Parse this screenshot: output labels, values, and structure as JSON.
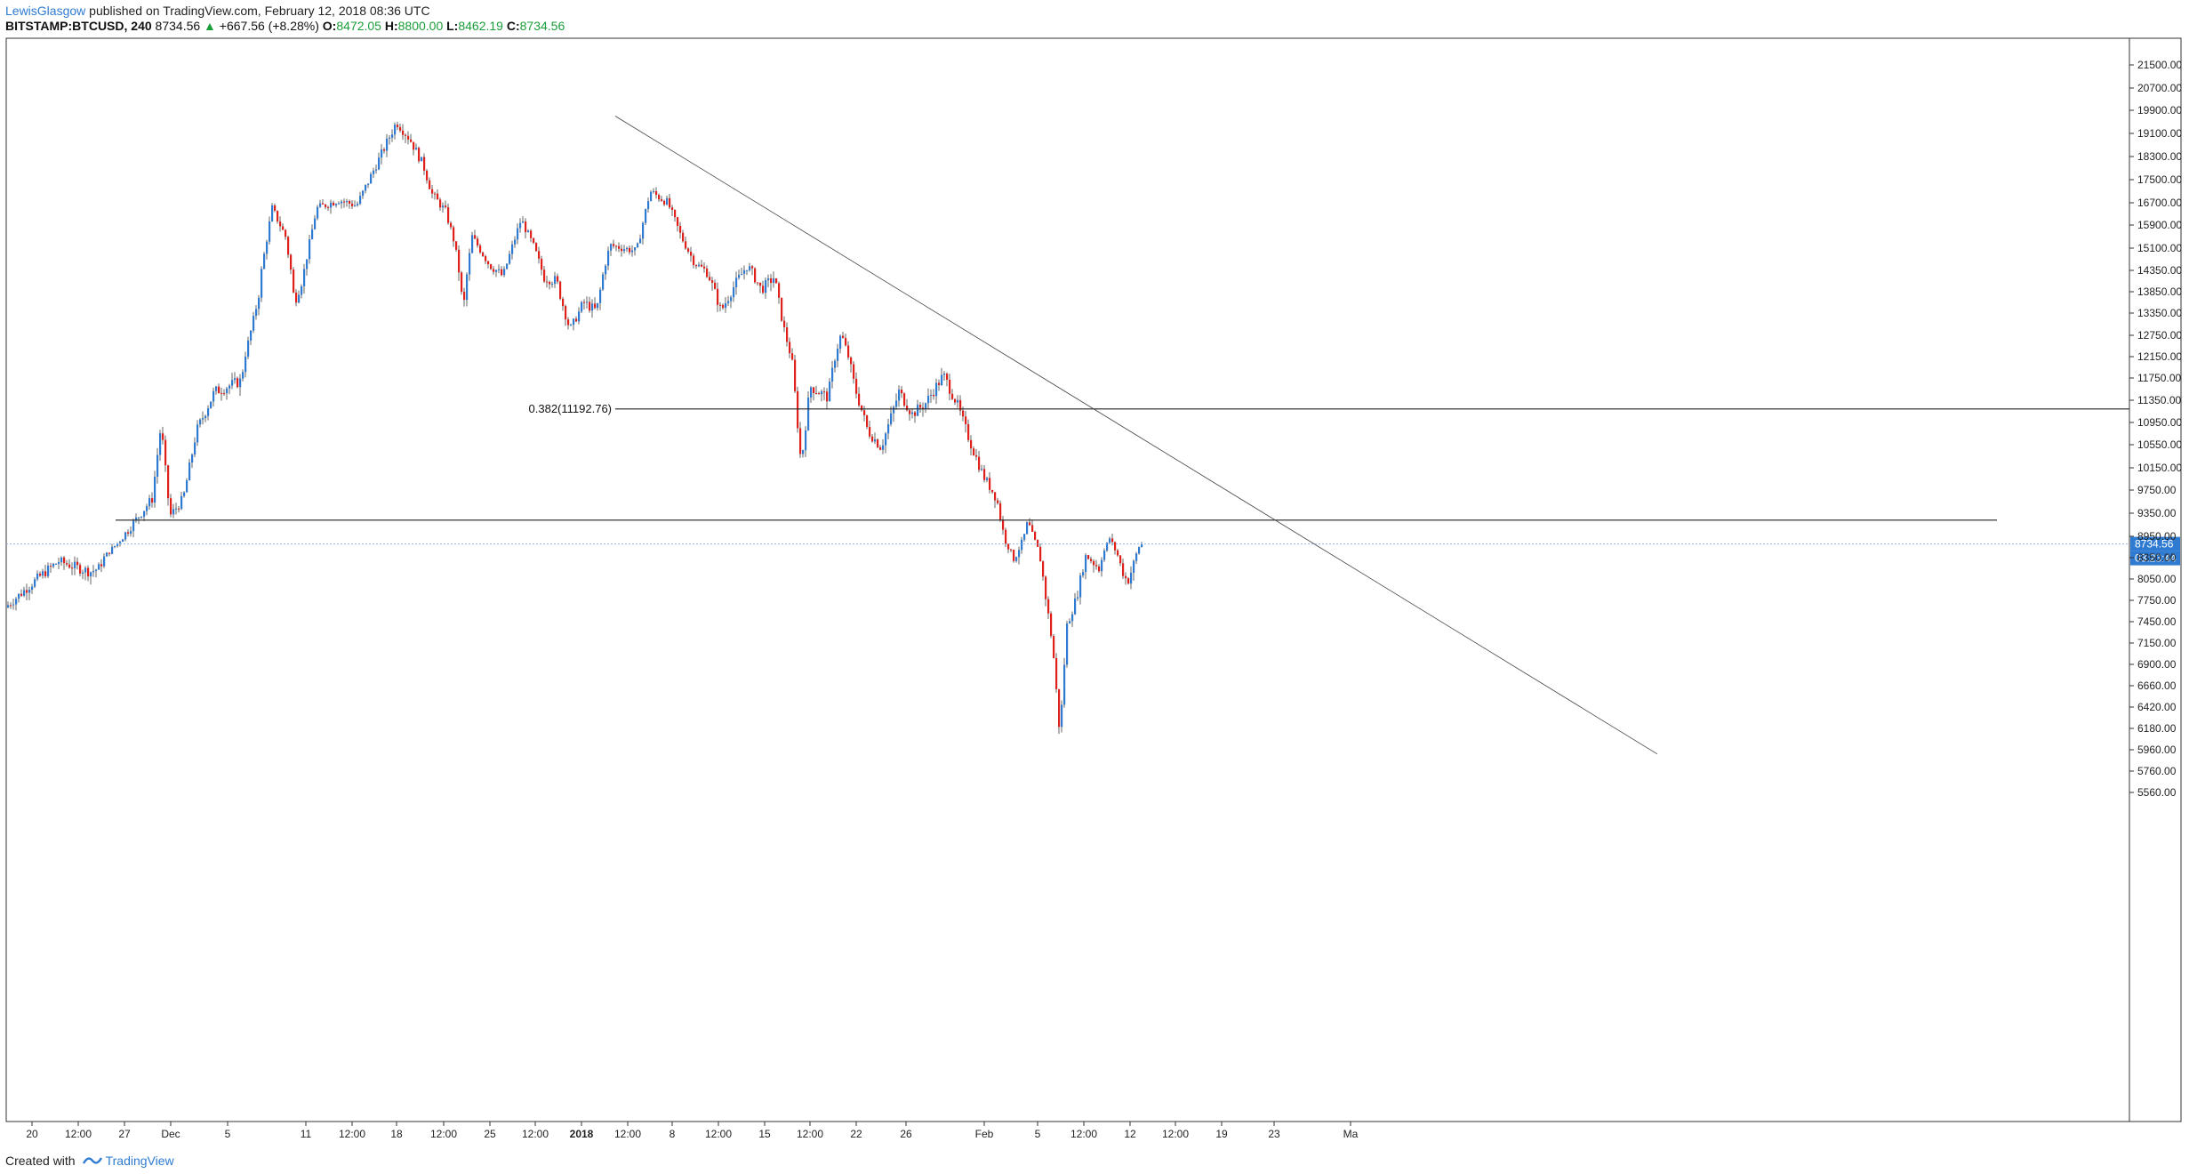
{
  "header": {
    "author": "LewisGlasgow",
    "published": " published on TradingView.com, February 12, 2018 08:36 UTC"
  },
  "symbol": {
    "name": "BITSTAMP:BTCUSD, 240",
    "last": "8734.56",
    "change": "+667.56 (+8.28%)",
    "o_label": "O:",
    "o": "8472.05",
    "h_label": "H:",
    "h": "8800.00",
    "l_label": "L:",
    "l": "8462.19",
    "c_label": "C:",
    "c": "8734.56",
    "up_color": "#1a9e3a"
  },
  "footer": {
    "created_with": "Created with",
    "brand": "TradingView",
    "brand_icon": "tradingview-logo-icon"
  },
  "chart_data": {
    "type": "candlestick",
    "y_ticks": [
      "21500.00",
      "20700.00",
      "19900.00",
      "19100.00",
      "18300.00",
      "17500.00",
      "16700.00",
      "15900.00",
      "15100.00",
      "14350.00",
      "13850.00",
      "13350.00",
      "12750.00",
      "12150.00",
      "11750.00",
      "11350.00",
      "10950.00",
      "10550.00",
      "10150.00",
      "9750.00",
      "9350.00",
      "8950.00",
      "8350.00",
      "8050.00",
      "7750.00",
      "7450.00",
      "7150.00",
      "6900.00",
      "6660.00",
      "6420.00",
      "6180.00",
      "5960.00",
      "5760.00",
      "5560.00"
    ],
    "x_ticks": [
      "20",
      "12:00",
      "27",
      "Dec",
      "5",
      "11",
      "12:00",
      "18",
      "12:00",
      "25",
      "12:00",
      "2018",
      "12:00",
      "8",
      "12:00",
      "15",
      "12:00",
      "22",
      "26",
      "Feb",
      "5",
      "12:00",
      "12",
      "12:00",
      "19",
      "23",
      "Ma"
    ],
    "up_color": "#2f7bd1",
    "down_color": "#e0201b",
    "last_price_label": "8734.56",
    "countdown_label": "03:23:44",
    "fib_label": "0.382(11192.76)",
    "horizontal_levels": [
      11192.76,
      9230
    ],
    "trendline": {
      "from": 19700,
      "to": 5920
    },
    "anchors": [
      {
        "t": 0,
        "p": 7650
      },
      {
        "t": 40,
        "p": 8100
      },
      {
        "t": 60,
        "p": 8300
      },
      {
        "t": 95,
        "p": 8150
      },
      {
        "t": 105,
        "p": 8200
      },
      {
        "t": 135,
        "p": 9000
      },
      {
        "t": 165,
        "p": 9600
      },
      {
        "t": 175,
        "p": 10900
      },
      {
        "t": 185,
        "p": 9300
      },
      {
        "t": 200,
        "p": 9600
      },
      {
        "t": 215,
        "p": 10800
      },
      {
        "t": 235,
        "p": 11500
      },
      {
        "t": 265,
        "p": 11700
      },
      {
        "t": 285,
        "p": 13800
      },
      {
        "t": 300,
        "p": 16500
      },
      {
        "t": 315,
        "p": 15500
      },
      {
        "t": 325,
        "p": 13600
      },
      {
        "t": 335,
        "p": 14200
      },
      {
        "t": 350,
        "p": 16500
      },
      {
        "t": 375,
        "p": 16800
      },
      {
        "t": 395,
        "p": 16600
      },
      {
        "t": 420,
        "p": 18200
      },
      {
        "t": 440,
        "p": 19500
      },
      {
        "t": 455,
        "p": 18900
      },
      {
        "t": 470,
        "p": 18000
      },
      {
        "t": 480,
        "p": 17000
      },
      {
        "t": 495,
        "p": 16400
      },
      {
        "t": 505,
        "p": 15300
      },
      {
        "t": 515,
        "p": 13400
      },
      {
        "t": 525,
        "p": 15500
      },
      {
        "t": 545,
        "p": 14500
      },
      {
        "t": 560,
        "p": 14200
      },
      {
        "t": 580,
        "p": 16100
      },
      {
        "t": 595,
        "p": 15100
      },
      {
        "t": 605,
        "p": 14200
      },
      {
        "t": 620,
        "p": 14100
      },
      {
        "t": 635,
        "p": 12900
      },
      {
        "t": 650,
        "p": 13600
      },
      {
        "t": 665,
        "p": 13400
      },
      {
        "t": 680,
        "p": 15200
      },
      {
        "t": 710,
        "p": 15000
      },
      {
        "t": 725,
        "p": 17100
      },
      {
        "t": 745,
        "p": 16700
      },
      {
        "t": 760,
        "p": 15500
      },
      {
        "t": 775,
        "p": 14600
      },
      {
        "t": 790,
        "p": 14300
      },
      {
        "t": 805,
        "p": 13400
      },
      {
        "t": 820,
        "p": 14000
      },
      {
        "t": 835,
        "p": 14500
      },
      {
        "t": 850,
        "p": 13900
      },
      {
        "t": 865,
        "p": 14200
      },
      {
        "t": 875,
        "p": 13000
      },
      {
        "t": 885,
        "p": 12000
      },
      {
        "t": 895,
        "p": 10200
      },
      {
        "t": 905,
        "p": 11600
      },
      {
        "t": 925,
        "p": 11400
      },
      {
        "t": 940,
        "p": 12800
      },
      {
        "t": 955,
        "p": 11600
      },
      {
        "t": 970,
        "p": 10800
      },
      {
        "t": 985,
        "p": 10500
      },
      {
        "t": 1005,
        "p": 11500
      },
      {
        "t": 1020,
        "p": 11100
      },
      {
        "t": 1035,
        "p": 11300
      },
      {
        "t": 1055,
        "p": 11800
      },
      {
        "t": 1070,
        "p": 11300
      },
      {
        "t": 1085,
        "p": 10600
      },
      {
        "t": 1100,
        "p": 10000
      },
      {
        "t": 1115,
        "p": 9600
      },
      {
        "t": 1125,
        "p": 8800
      },
      {
        "t": 1135,
        "p": 8300
      },
      {
        "t": 1150,
        "p": 9200
      },
      {
        "t": 1160,
        "p": 8700
      },
      {
        "t": 1170,
        "p": 7800
      },
      {
        "t": 1178,
        "p": 7100
      },
      {
        "t": 1186,
        "p": 6100
      },
      {
        "t": 1194,
        "p": 7400
      },
      {
        "t": 1205,
        "p": 7800
      },
      {
        "t": 1215,
        "p": 8400
      },
      {
        "t": 1230,
        "p": 8200
      },
      {
        "t": 1242,
        "p": 8900
      },
      {
        "t": 1255,
        "p": 8200
      },
      {
        "t": 1262,
        "p": 8000
      },
      {
        "t": 1270,
        "p": 8300
      },
      {
        "t": 1276,
        "p": 8734
      }
    ]
  }
}
